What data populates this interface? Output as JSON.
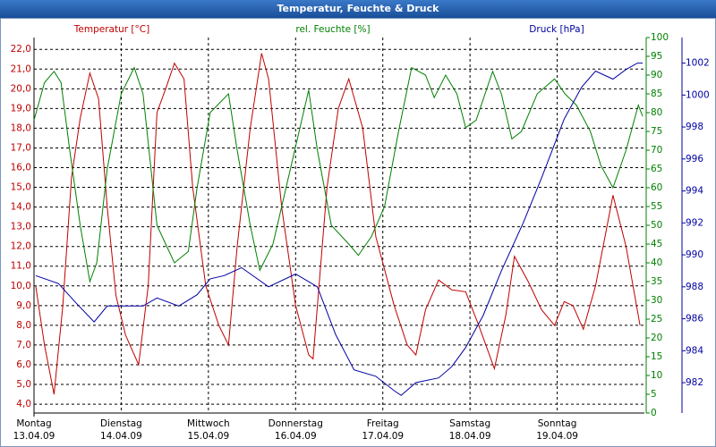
{
  "window_title": "Temperatur, Feuchte & Druck",
  "chart_data": {
    "type": "line",
    "grid": true,
    "xlim": [
      0,
      7
    ],
    "xticks": [
      {
        "value": 0,
        "label": [
          "Montag",
          "13.04.09"
        ]
      },
      {
        "value": 1,
        "label": [
          "Dienstag",
          "14.04.09"
        ]
      },
      {
        "value": 2,
        "label": [
          "Mittwoch",
          "15.04.09"
        ]
      },
      {
        "value": 3,
        "label": [
          "Donnerstag",
          "16.04.09"
        ]
      },
      {
        "value": 4,
        "label": [
          "Freitag",
          "17.04.09"
        ]
      },
      {
        "value": 5,
        "label": [
          "Samstag",
          "18.04.09"
        ]
      },
      {
        "value": 6,
        "label": [
          "Sonntag",
          "19.04.09"
        ]
      }
    ],
    "ylabel": "Temperatur [°C]",
    "ylim": [
      3.55,
      22.6
    ],
    "yticks": [
      {
        "value": 4,
        "label": "4,0"
      },
      {
        "value": 5,
        "label": "5,0"
      },
      {
        "value": 6,
        "label": "6,0"
      },
      {
        "value": 7,
        "label": "7,0"
      },
      {
        "value": 8,
        "label": "8,0"
      },
      {
        "value": 9,
        "label": "9,0"
      },
      {
        "value": 10,
        "label": "10,0"
      },
      {
        "value": 11,
        "label": "11,0"
      },
      {
        "value": 12,
        "label": "12,0"
      },
      {
        "value": 13,
        "label": "13,0"
      },
      {
        "value": 14,
        "label": "14,0"
      },
      {
        "value": 15,
        "label": "15,0"
      },
      {
        "value": 16,
        "label": "16,0"
      },
      {
        "value": 17,
        "label": "17,0"
      },
      {
        "value": 18,
        "label": "18,0"
      },
      {
        "value": 19,
        "label": "19,0"
      },
      {
        "value": 20,
        "label": "20,0"
      },
      {
        "value": 21,
        "label": "21,0"
      },
      {
        "value": 22,
        "label": "22,0"
      }
    ],
    "y2label": "rel. Feuchte [%]",
    "y2lim": [
      0,
      100
    ],
    "y2ticks": [
      0,
      5,
      10,
      15,
      20,
      25,
      30,
      35,
      40,
      45,
      50,
      55,
      60,
      65,
      70,
      75,
      80,
      85,
      90,
      95,
      100
    ],
    "y3label": "Druck [hPa]",
    "y3lim": [
      980.1,
      1003.6
    ],
    "y3ticks": [
      982,
      984,
      986,
      988,
      990,
      992,
      994,
      996,
      998,
      1000,
      1002
    ],
    "series": [
      {
        "name": "Temperatur",
        "color": "#c00000",
        "axis": "y",
        "x": [
          0.02,
          0.12,
          0.23,
          0.33,
          0.43,
          0.53,
          0.64,
          0.74,
          0.84,
          0.94,
          1.05,
          1.2,
          1.31,
          1.41,
          1.51,
          1.61,
          1.72,
          1.82,
          1.97,
          2.12,
          2.23,
          2.33,
          2.48,
          2.61,
          2.69,
          2.84,
          3.0,
          3.15,
          3.2,
          3.36,
          3.49,
          3.61,
          3.77,
          3.92,
          4.13,
          4.28,
          4.38,
          4.49,
          4.64,
          4.79,
          4.95,
          5.1,
          5.28,
          5.41,
          5.51,
          5.67,
          5.82,
          5.97,
          6.08,
          6.18,
          6.3,
          6.44,
          6.64,
          6.79,
          6.95
        ],
        "values": [
          10.0,
          7.0,
          4.5,
          9.0,
          15.5,
          18.5,
          20.8,
          19.5,
          14.0,
          9.5,
          7.5,
          6.0,
          10.0,
          18.8,
          20.0,
          21.3,
          20.5,
          15.0,
          10.0,
          8.0,
          7.0,
          12.0,
          18.0,
          21.8,
          20.5,
          14.0,
          9.0,
          6.5,
          6.3,
          15.0,
          19.0,
          20.5,
          18.0,
          12.5,
          9.0,
          7.0,
          6.5,
          8.8,
          10.3,
          9.8,
          9.7,
          8.0,
          5.8,
          8.5,
          11.5,
          10.2,
          8.8,
          8.0,
          9.2,
          9.0,
          7.8,
          10.0,
          14.6,
          12.0,
          8.0
        ]
      },
      {
        "name": "rel. Feuchte",
        "color": "#008000",
        "axis": "y2",
        "x": [
          0,
          0.12,
          0.23,
          0.31,
          0.41,
          0.53,
          0.64,
          0.72,
          0.84,
          1.0,
          1.15,
          1.25,
          1.41,
          1.51,
          1.61,
          1.77,
          1.87,
          2.02,
          2.23,
          2.33,
          2.48,
          2.59,
          2.74,
          2.89,
          3.15,
          3.25,
          3.41,
          3.61,
          3.72,
          3.87,
          4.02,
          4.18,
          4.33,
          4.49,
          4.59,
          4.72,
          4.85,
          4.95,
          5.07,
          5.26,
          5.36,
          5.48,
          5.59,
          5.77,
          5.97,
          6.09,
          6.22,
          6.38,
          6.5,
          6.64,
          6.79,
          6.93,
          6.98
        ],
        "values": [
          78,
          88,
          91,
          88,
          70,
          50,
          35,
          40,
          65,
          85,
          92,
          85,
          50,
          45,
          40,
          43,
          60,
          80,
          85,
          70,
          50,
          38,
          45,
          60,
          86,
          70,
          50,
          45,
          42,
          47,
          55,
          75,
          92,
          90,
          84,
          90,
          85,
          76,
          78,
          91,
          85,
          73,
          75,
          85,
          89,
          85,
          82,
          75,
          66,
          60,
          70,
          82,
          79
        ]
      },
      {
        "name": "Druck",
        "color": "#0000a0",
        "axis": "y3",
        "x": [
          0.02,
          0.28,
          0.48,
          0.69,
          0.84,
          1.25,
          1.41,
          1.66,
          1.87,
          2.02,
          2.18,
          2.38,
          2.69,
          3.0,
          3.25,
          3.46,
          3.67,
          3.92,
          4.13,
          4.21,
          4.38,
          4.64,
          4.79,
          4.95,
          5.15,
          5.36,
          5.61,
          5.82,
          6.08,
          6.28,
          6.44,
          6.64,
          6.79,
          6.92,
          6.98
        ],
        "values": [
          988.7,
          988.2,
          987.0,
          985.8,
          986.8,
          986.8,
          987.3,
          986.8,
          987.5,
          988.5,
          988.7,
          989.2,
          988.0,
          988.8,
          988.0,
          985.0,
          982.8,
          982.4,
          981.5,
          981.2,
          982.0,
          982.3,
          983.0,
          984.2,
          986.2,
          989.0,
          992.0,
          994.8,
          998.5,
          1000.5,
          1001.5,
          1001.0,
          1001.6,
          1002.0,
          1002.0
        ]
      }
    ]
  }
}
